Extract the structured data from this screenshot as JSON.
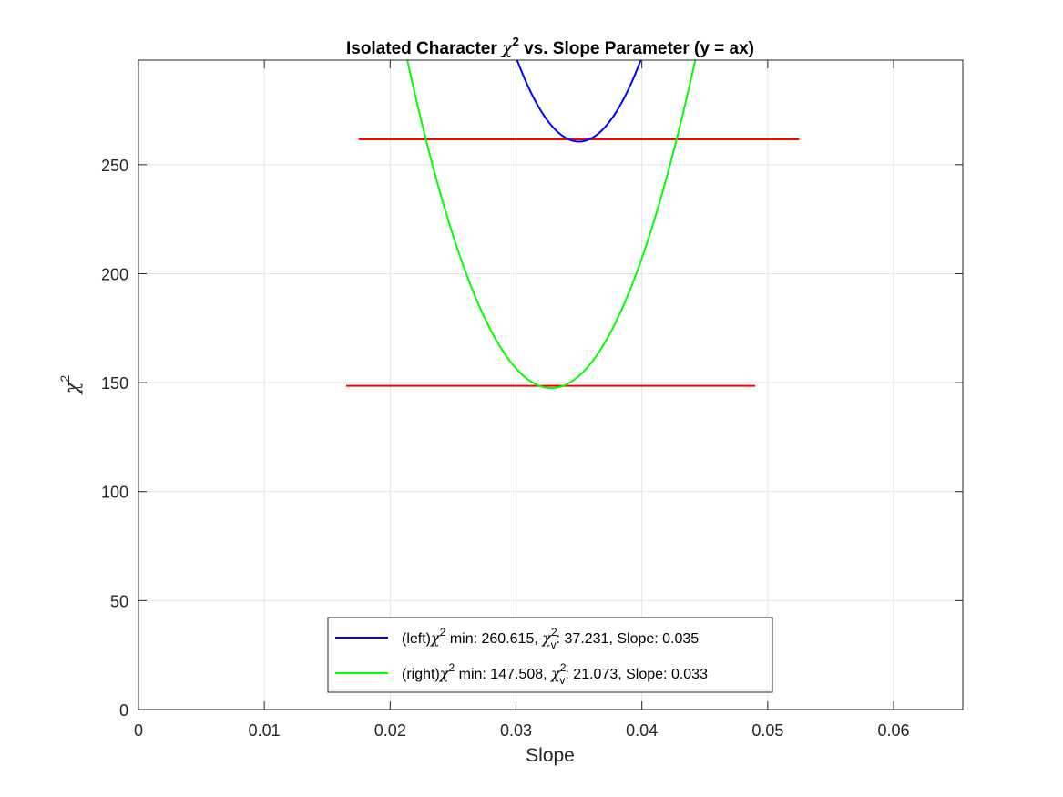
{
  "chart_data": {
    "type": "line",
    "title": {
      "prefix": "Isolated Character ",
      "chi": "χ",
      "sup": "2",
      "suffix": " vs. Slope Parameter (y = ax)"
    },
    "xlabel": "Slope",
    "ylabel": {
      "chi": "χ",
      "sup": "2"
    },
    "xlim": [
      0,
      0.0655
    ],
    "ylim": [
      0,
      298
    ],
    "xticks": [
      0,
      0.01,
      0.02,
      0.03,
      0.04,
      0.05,
      0.06
    ],
    "xtick_labels": [
      "0",
      "0.01",
      "0.02",
      "0.03",
      "0.04",
      "0.05",
      "0.06"
    ],
    "yticks": [
      0,
      50,
      100,
      150,
      200,
      250
    ],
    "ytick_labels": [
      "0",
      "50",
      "100",
      "150",
      "200",
      "250"
    ],
    "grid": true,
    "legend_position": "bottom-center",
    "series": [
      {
        "name": "(left)χ² min: 260.615, χᵥ²: 37.231, Slope: 0.035",
        "label_parts": {
          "pre": "(left)",
          "chi": "χ",
          "sup": "2",
          "mid": " min: 260.615, ",
          "chi2": "χ",
          "sub2": "v",
          "sup2": "2",
          "post": ": 37.231, Slope: 0.035"
        },
        "color": "#0000ff",
        "kind": "parabola",
        "vertex_x": 0.035,
        "min": 260.615,
        "curvature": 1550000,
        "x_range": [
          0.0295,
          0.0405
        ]
      },
      {
        "name": "(right)χ² min: 147.508, χᵥ²: 21.073, Slope: 0.033",
        "label_parts": {
          "pre": "(right)",
          "chi": "χ",
          "sup": "2",
          "mid": " min: 147.508, ",
          "chi2": "χ",
          "sub2": "v",
          "sup2": "2",
          "post": ": 21.073, Slope: 0.033"
        },
        "color": "#00ff00",
        "kind": "parabola",
        "vertex_x": 0.0328,
        "min": 147.508,
        "curvature": 1150000,
        "x_range": [
          0.0205,
          0.0455
        ]
      }
    ],
    "reference_lines": [
      {
        "color": "#ff0000",
        "y": 261.615,
        "x": [
          0.0175,
          0.0525
        ]
      },
      {
        "color": "#ff0000",
        "y": 148.508,
        "x": [
          0.0165,
          0.049
        ]
      }
    ]
  }
}
